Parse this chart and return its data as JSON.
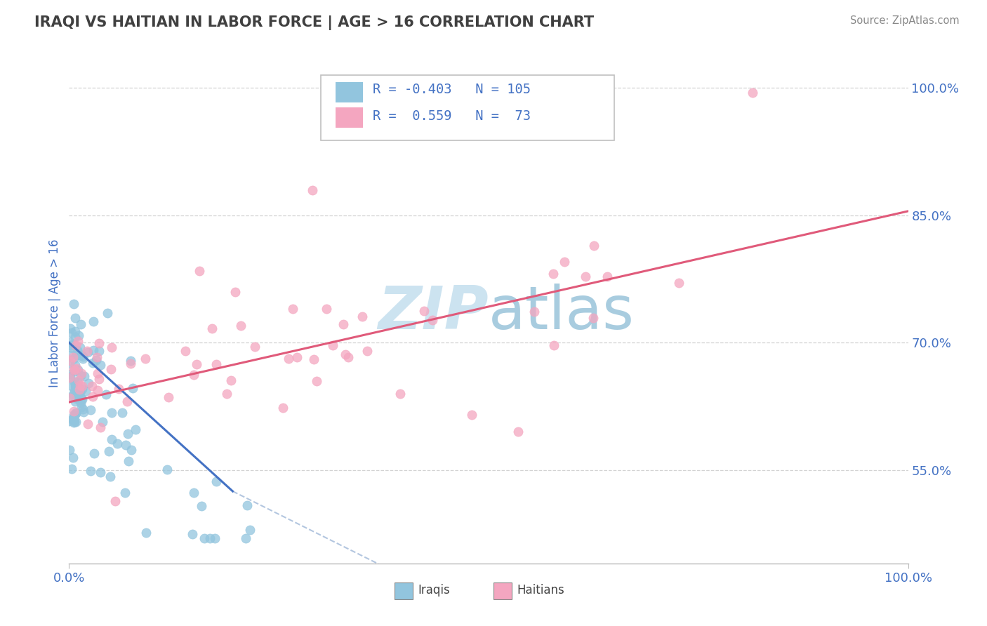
{
  "title": "IRAQI VS HAITIAN IN LABOR FORCE | AGE > 16 CORRELATION CHART",
  "source_text": "Source: ZipAtlas.com",
  "ylabel": "In Labor Force | Age > 16",
  "x_min": 0.0,
  "x_max": 1.0,
  "y_min": 0.44,
  "y_max": 1.03,
  "x_tick_labels": [
    "0.0%",
    "100.0%"
  ],
  "x_tick_positions": [
    0.0,
    1.0
  ],
  "y_tick_labels": [
    "55.0%",
    "70.0%",
    "85.0%",
    "100.0%"
  ],
  "y_tick_positions": [
    0.55,
    0.7,
    0.85,
    1.0
  ],
  "iraqi_color": "#92c5de",
  "haitian_color": "#f4a6c0",
  "iraqi_line_color": "#4472c4",
  "haitian_line_color": "#e05a7a",
  "dashed_line_color": "#a0b8d8",
  "title_color": "#404040",
  "axis_label_color": "#4472c4",
  "tick_label_color": "#4472c4",
  "watermark_color": "#cce3f0",
  "background_color": "#ffffff",
  "grid_color": "#c8c8c8",
  "legend_box_color": "#4472c4",
  "iraqi_line_x": [
    0.0,
    0.195
  ],
  "iraqi_line_y": [
    0.7,
    0.525
  ],
  "dashed_line_x": [
    0.195,
    0.55
  ],
  "dashed_line_y": [
    0.525,
    0.35
  ],
  "haitian_line_x": [
    0.0,
    1.0
  ],
  "haitian_line_y": [
    0.63,
    0.855
  ]
}
